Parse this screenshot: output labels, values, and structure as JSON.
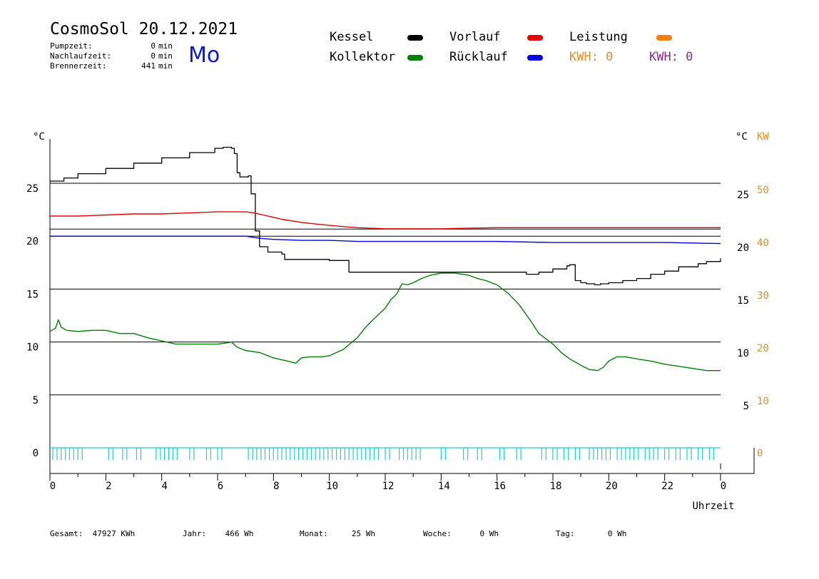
{
  "header": {
    "title": "CosmoSol 20.12.2021",
    "day": "Mo",
    "stats": [
      {
        "label": "Pumpzeit:",
        "value": "0",
        "unit": "min"
      },
      {
        "label": "Nachlaufzeit:",
        "value": "0",
        "unit": "min"
      },
      {
        "label": "Brennerzeit:",
        "value": "441",
        "unit": "min"
      }
    ]
  },
  "legend": {
    "kessel": {
      "label": "Kessel",
      "color": "#000000"
    },
    "vorlauf": {
      "label": "Vorlauf",
      "color": "#e00000"
    },
    "leistung": {
      "label": "Leistung",
      "color": "#f08010"
    },
    "kollektor": {
      "label": "Kollektor",
      "color": "#008000"
    },
    "ruecklauf": {
      "label": "Rücklauf",
      "color": "#0000e0"
    },
    "kwh1": {
      "label": "KWH: 0",
      "color": "#e09030"
    },
    "kwh2": {
      "label": "KWH: 0",
      "color": "#803090"
    }
  },
  "footer": [
    {
      "label": "Gesamt:",
      "value": "47927 KWh"
    },
    {
      "label": "Jahr:",
      "value": "466 Wh"
    },
    {
      "label": "Monat:",
      "value": "25 Wh"
    },
    {
      "label": "Woche:",
      "value": "0 Wh"
    },
    {
      "label": "Tag:",
      "value": "0 Wh"
    }
  ],
  "chart_data": {
    "type": "line",
    "xlabel": "Uhrzeit",
    "ylabel_left": "°C",
    "ylabel_right_temp": "°C",
    "ylabel_right_power": "KW",
    "xlim": [
      0,
      24
    ],
    "x_ticks": [
      "0",
      "2",
      "4",
      "6",
      "8",
      "10",
      "12",
      "14",
      "16",
      "18",
      "20",
      "22",
      "0"
    ],
    "y_left_ticks": [
      "0",
      "5",
      "10",
      "15",
      "20",
      "25"
    ],
    "y_right_temp_ticks": [
      "5",
      "10",
      "15",
      "20",
      "25"
    ],
    "y_right_power_ticks": [
      "0",
      "10",
      "20",
      "30",
      "40",
      "50"
    ],
    "ylim_left": [
      0,
      30
    ],
    "gridlines_y": [
      5,
      10,
      15,
      20,
      25
    ],
    "series": [
      {
        "name": "Kessel",
        "color": "#000000",
        "step": true,
        "points": [
          [
            0,
            25.2
          ],
          [
            0.5,
            25.5
          ],
          [
            1,
            25.9
          ],
          [
            2,
            26.4
          ],
          [
            3,
            26.9
          ],
          [
            4,
            27.4
          ],
          [
            5,
            27.9
          ],
          [
            5.9,
            28.3
          ],
          [
            6.2,
            28.4
          ],
          [
            6.5,
            28.3
          ],
          [
            6.6,
            27.8
          ],
          [
            6.7,
            26.0
          ],
          [
            6.8,
            25.6
          ],
          [
            7.1,
            25.7
          ],
          [
            7.2,
            24.0
          ],
          [
            7.35,
            20.5
          ],
          [
            7.5,
            19.0
          ],
          [
            7.8,
            18.5
          ],
          [
            8.3,
            18.3
          ],
          [
            8.4,
            17.8
          ],
          [
            9.0,
            17.8
          ],
          [
            10.0,
            17.7
          ],
          [
            10.5,
            17.7
          ],
          [
            10.7,
            16.6
          ],
          [
            11.0,
            16.6
          ],
          [
            13.0,
            16.6
          ],
          [
            15.0,
            16.6
          ],
          [
            17.0,
            16.6
          ],
          [
            17.05,
            16.4
          ],
          [
            17.5,
            16.6
          ],
          [
            18.0,
            16.9
          ],
          [
            18.5,
            17.2
          ],
          [
            18.6,
            17.3
          ],
          [
            18.8,
            15.8
          ],
          [
            19.0,
            15.6
          ],
          [
            19.2,
            15.5
          ],
          [
            19.5,
            15.4
          ],
          [
            19.7,
            15.5
          ],
          [
            20.0,
            15.6
          ],
          [
            20.5,
            15.8
          ],
          [
            21.0,
            16.0
          ],
          [
            21.5,
            16.4
          ],
          [
            22.0,
            16.7
          ],
          [
            22.5,
            17.1
          ],
          [
            22.8,
            17.1
          ],
          [
            23.2,
            17.4
          ],
          [
            23.5,
            17.6
          ],
          [
            24.0,
            17.9
          ]
        ]
      },
      {
        "name": "Vorlauf",
        "color": "#e00000",
        "points": [
          [
            0,
            21.9
          ],
          [
            1,
            21.9
          ],
          [
            2,
            22.0
          ],
          [
            3,
            22.1
          ],
          [
            4,
            22.1
          ],
          [
            5,
            22.2
          ],
          [
            6,
            22.3
          ],
          [
            7,
            22.3
          ],
          [
            7.3,
            22.2
          ],
          [
            7.8,
            21.9
          ],
          [
            8.3,
            21.6
          ],
          [
            9.0,
            21.3
          ],
          [
            9.7,
            21.1
          ],
          [
            10.5,
            20.9
          ],
          [
            11,
            20.8
          ],
          [
            12,
            20.7
          ],
          [
            14,
            20.7
          ],
          [
            16,
            20.8
          ],
          [
            18,
            20.8
          ],
          [
            20,
            20.8
          ],
          [
            22,
            20.8
          ],
          [
            24,
            20.8
          ]
        ]
      },
      {
        "name": "Rücklauf",
        "color": "#0000e0",
        "points": [
          [
            0,
            20.0
          ],
          [
            2,
            20.0
          ],
          [
            4,
            20.0
          ],
          [
            6,
            20.0
          ],
          [
            7,
            20.0
          ],
          [
            7.5,
            19.8
          ],
          [
            8,
            19.7
          ],
          [
            9,
            19.6
          ],
          [
            10,
            19.6
          ],
          [
            11,
            19.5
          ],
          [
            12,
            19.5
          ],
          [
            14,
            19.5
          ],
          [
            16,
            19.5
          ],
          [
            18,
            19.4
          ],
          [
            20,
            19.4
          ],
          [
            22,
            19.4
          ],
          [
            24,
            19.3
          ]
        ]
      },
      {
        "name": "Kollektor",
        "color": "#008000",
        "points": [
          [
            0,
            11.0
          ],
          [
            0.2,
            11.3
          ],
          [
            0.3,
            12.1
          ],
          [
            0.4,
            11.4
          ],
          [
            0.6,
            11.1
          ],
          [
            1,
            11.0
          ],
          [
            1.5,
            11.1
          ],
          [
            2,
            11.1
          ],
          [
            2.5,
            10.8
          ],
          [
            3,
            10.8
          ],
          [
            3.5,
            10.4
          ],
          [
            4,
            10.1
          ],
          [
            4.5,
            9.8
          ],
          [
            5,
            9.8
          ],
          [
            5.5,
            9.8
          ],
          [
            6,
            9.8
          ],
          [
            6.3,
            9.9
          ],
          [
            6.5,
            10.0
          ],
          [
            6.7,
            9.5
          ],
          [
            7,
            9.2
          ],
          [
            7.5,
            9.0
          ],
          [
            8,
            8.5
          ],
          [
            8.5,
            8.2
          ],
          [
            8.8,
            8.0
          ],
          [
            9.0,
            8.5
          ],
          [
            9.3,
            8.6
          ],
          [
            9.7,
            8.6
          ],
          [
            10.0,
            8.7
          ],
          [
            10.5,
            9.3
          ],
          [
            11.0,
            10.4
          ],
          [
            11.3,
            11.4
          ],
          [
            11.6,
            12.2
          ],
          [
            12.0,
            13.2
          ],
          [
            12.2,
            14.0
          ],
          [
            12.4,
            14.5
          ],
          [
            12.6,
            15.5
          ],
          [
            12.8,
            15.4
          ],
          [
            13.0,
            15.6
          ],
          [
            13.3,
            16.0
          ],
          [
            13.6,
            16.3
          ],
          [
            14.0,
            16.5
          ],
          [
            14.5,
            16.5
          ],
          [
            15.0,
            16.3
          ],
          [
            15.3,
            16.0
          ],
          [
            15.6,
            15.8
          ],
          [
            16.0,
            15.4
          ],
          [
            16.4,
            14.6
          ],
          [
            16.8,
            13.5
          ],
          [
            17.2,
            12.0
          ],
          [
            17.5,
            10.8
          ],
          [
            18.0,
            9.8
          ],
          [
            18.3,
            9.0
          ],
          [
            18.6,
            8.4
          ],
          [
            19.0,
            7.8
          ],
          [
            19.3,
            7.4
          ],
          [
            19.6,
            7.3
          ],
          [
            19.8,
            7.6
          ],
          [
            20.0,
            8.2
          ],
          [
            20.3,
            8.6
          ],
          [
            20.6,
            8.6
          ],
          [
            21.0,
            8.4
          ],
          [
            21.5,
            8.2
          ],
          [
            22.0,
            7.9
          ],
          [
            22.5,
            7.7
          ],
          [
            23.0,
            7.5
          ],
          [
            23.5,
            7.3
          ],
          [
            24.0,
            7.3
          ]
        ]
      }
    ],
    "leistung_pulses_start_hours": [
      0.1,
      0.4,
      0.7,
      1.0,
      2.1,
      2.6,
      3.1,
      3.8,
      4.1,
      4.4,
      5.0,
      5.6,
      6.0,
      7.1,
      7.4,
      7.7,
      8.0,
      8.3,
      8.6,
      8.9,
      9.2,
      9.5,
      9.8,
      10.1,
      10.4,
      10.7,
      11.0,
      11.3,
      11.6,
      12.0,
      12.5,
      12.8,
      13.1,
      14.0,
      14.8,
      15.3,
      16.1,
      16.7,
      17.6,
      18.0,
      18.4,
      18.8,
      19.3,
      19.6,
      19.9,
      20.3,
      20.6,
      20.9,
      21.3,
      21.6,
      22.0,
      22.4,
      22.8,
      23.2,
      23.6
    ]
  }
}
